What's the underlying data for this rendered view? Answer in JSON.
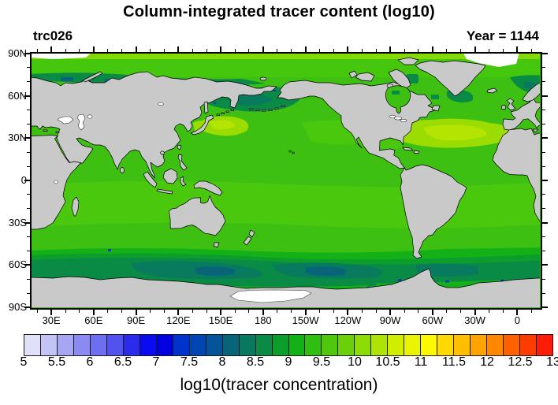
{
  "header": {
    "title": "Column-integrated tracer content (log10)",
    "left_label": "trc026",
    "right_label": "Year = 1144"
  },
  "axes": {
    "lon_start": 16,
    "lon_span": 360,
    "major_step": 30,
    "minor_step": 10,
    "lat_ticks": [
      {
        "label": "90N",
        "deg": 90
      },
      {
        "label": "60N",
        "deg": 60
      },
      {
        "label": "30N",
        "deg": 30
      },
      {
        "label": "0",
        "deg": 0
      },
      {
        "label": "30S",
        "deg": -30
      },
      {
        "label": "60S",
        "deg": -60
      },
      {
        "label": "90S",
        "deg": -90
      }
    ],
    "lon_ticks": [
      {
        "label": "30E",
        "deg": 30
      },
      {
        "label": "60E",
        "deg": 60
      },
      {
        "label": "90E",
        "deg": 90
      },
      {
        "label": "120E",
        "deg": 120
      },
      {
        "label": "150E",
        "deg": 150
      },
      {
        "label": "180",
        "deg": 180
      },
      {
        "label": "150W",
        "deg": 210
      },
      {
        "label": "120W",
        "deg": 240
      },
      {
        "label": "90W",
        "deg": 270
      },
      {
        "label": "60W",
        "deg": 300
      },
      {
        "label": "30W",
        "deg": 330
      },
      {
        "label": "0",
        "deg": 360
      }
    ]
  },
  "colorbar": {
    "min": 5,
    "max": 13,
    "step": 0.25,
    "labels": [
      "5",
      "5.5",
      "6",
      "6.5",
      "7",
      "7.5",
      "8",
      "8.5",
      "9",
      "9.5",
      "10",
      "10.5",
      "11",
      "11.5",
      "12",
      "12.5",
      "13"
    ],
    "colors": [
      "#e0e0f8",
      "#c3c3f5",
      "#a6a6f5",
      "#8a8af2",
      "#6e6ef0",
      "#5252ee",
      "#2b2bee",
      "#0b0bf0",
      "#0000e0",
      "#0033cc",
      "#0046b2",
      "#055499",
      "#086478",
      "#09785e",
      "#0a8a45",
      "#0c9d2d",
      "#13b117",
      "#30be10",
      "#4ec70d",
      "#6bd00a",
      "#8cda06",
      "#aee403",
      "#d2ee00",
      "#eaf300",
      "#fff900",
      "#ffd900",
      "#ffbe00",
      "#ffa300",
      "#ff8800",
      "#ff6000",
      "#ff3c00",
      "#fc1c08"
    ],
    "title": "log10(tracer concentration)"
  },
  "map_colors": {
    "land": "#c9c9c9",
    "coastline": "#000000",
    "ocean_base": "#3ec013",
    "ocean_light": "#4ac80e",
    "arctic_green": "#45c70d",
    "arctic_top": "#84d906",
    "yellow_green": "#9bdc03",
    "yellow_bright": "#b4e502",
    "green_mid": "#13b117",
    "green_teal": "#0c9d2d",
    "teal": "#098a45",
    "teal_deep": "#087a5e",
    "teal_dark": "#086478",
    "blue_speck": "#0035cc",
    "lake_white": "#ffffff"
  },
  "chart_data": {
    "type": "heatmap",
    "title": "Column-integrated tracer content (log10)",
    "tracer_id": "trc026",
    "year": 1144,
    "colorbar_label": "log10(tracer concentration)",
    "levels_min": 5,
    "levels_max": 13,
    "levels_interval": 0.25,
    "palette": [
      "#e0e0f8",
      "#c3c3f5",
      "#a6a6f5",
      "#8a8af2",
      "#6e6ef0",
      "#5252ee",
      "#2b2bee",
      "#0b0bf0",
      "#0000e0",
      "#0033cc",
      "#0046b2",
      "#055499",
      "#086478",
      "#09785e",
      "#0a8a45",
      "#0c9d2d",
      "#13b117",
      "#30be10",
      "#4ec70d",
      "#6bd00a",
      "#8cda06",
      "#aee403",
      "#d2ee00",
      "#eaf300",
      "#fff900",
      "#ffd900",
      "#ffbe00",
      "#ffa300",
      "#ff8800",
      "#ff6000",
      "#ff3c00",
      "#fc1c08"
    ],
    "lat_tick_labels": [
      "90N",
      "60N",
      "30N",
      "0",
      "30S",
      "60S",
      "90S"
    ],
    "lon_tick_labels": [
      "30E",
      "60E",
      "90E",
      "120E",
      "150E",
      "180",
      "150W",
      "120W",
      "90W",
      "60W",
      "30W",
      "0"
    ],
    "projection": "cylindrical equidistant, Pacific-centered (longitude ~16E to 376E), latitude 90S to 90N",
    "grid": "major ticks every 30 degrees, minor every 10 degrees",
    "regional_values_log10": {
      "tropical_and_subtropical_oceans": "9.25-10",
      "north_atlantic_subtropical_gyre": "10-10.75",
      "northwest_pacific_kuroshio_region": "10.25-11",
      "arctic_ocean": "9-9.75",
      "siberian_bering_okhotsk_shelves": "7.75-8.75",
      "southern_ocean_50S_65S": "7.75-8.75",
      "antarctic_coastal_spots": "6.5-7.5",
      "below_scale_white_areas": [
        "Caspian Sea",
        "Black Sea",
        "Ross Ice Shelf",
        "sliver near North Pole"
      ]
    },
    "land_color": "#c9c9c9"
  }
}
